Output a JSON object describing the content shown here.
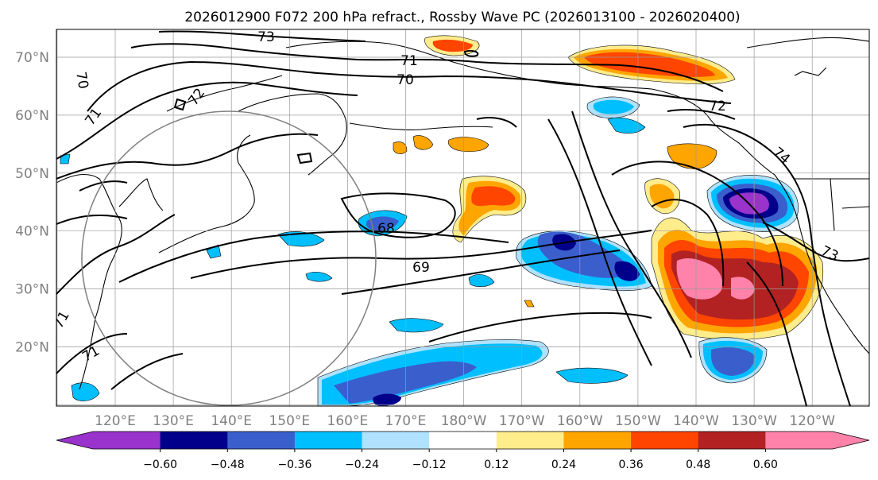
{
  "title": "2026012900 F072 200 hPa refract., Rossby Wave PC (2026013100 - 2026020400)",
  "map": {
    "lat_labels": [
      "70°N",
      "60°N",
      "50°N",
      "40°N",
      "30°N",
      "20°N"
    ],
    "lon_labels": [
      "120°E",
      "130°E",
      "140°E",
      "150°E",
      "160°E",
      "170°E",
      "180°W",
      "170°W",
      "160°W",
      "150°W",
      "140°W",
      "130°W",
      "120°W"
    ],
    "contour_labels": [
      "73",
      "71",
      "70",
      "72",
      "71",
      "70",
      "72",
      "74",
      "68",
      "69",
      "73",
      "71",
      "71"
    ]
  },
  "colorbar": {
    "ticks": [
      "−0.60",
      "−0.48",
      "−0.36",
      "−0.24",
      "−0.12",
      "0.12",
      "0.24",
      "0.36",
      "0.48",
      "0.60"
    ],
    "colors": [
      "#9933CC",
      "#00008B",
      "#3A5FCD",
      "#00BFFF",
      "#B0E2FF",
      "#FFFFFF",
      "#FFEC8B",
      "#FFA500",
      "#FF4500",
      "#B22222",
      "#FF82AB",
      "#FF82AB"
    ]
  }
}
